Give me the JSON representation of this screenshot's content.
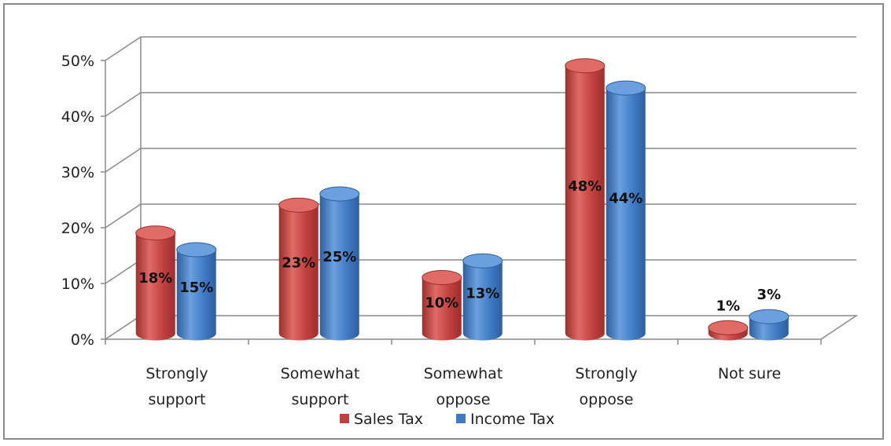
{
  "chart_data": {
    "type": "bar",
    "title": "",
    "xlabel": "",
    "ylabel": "",
    "ylim": [
      0,
      50
    ],
    "y_ticks": [
      "0%",
      "10%",
      "20%",
      "30%",
      "40%",
      "50%"
    ],
    "y_tick_values": [
      0,
      10,
      20,
      30,
      40,
      50
    ],
    "categories": [
      [
        "Strongly",
        "support"
      ],
      [
        "Somewhat",
        "support"
      ],
      [
        "Somewhat",
        "oppose"
      ],
      [
        "Strongly",
        "oppose"
      ],
      [
        "Not sure"
      ]
    ],
    "series": [
      {
        "name": "Sales Tax",
        "values": [
          18,
          23,
          10,
          48,
          1
        ],
        "labels": [
          "18%",
          "23%",
          "10%",
          "48%",
          "1%"
        ],
        "color": "#c0403e",
        "dark": "#9c2f2d",
        "light": "#e06a66"
      },
      {
        "name": "Income Tax",
        "values": [
          15,
          25,
          13,
          44,
          3
        ],
        "labels": [
          "15%",
          "25%",
          "13%",
          "44%",
          "3%"
        ],
        "color": "#3f7ac4",
        "dark": "#2f5f9e",
        "light": "#6aa0de"
      }
    ],
    "grid": true,
    "legend": "bottom",
    "style": "3d-cylinder"
  }
}
